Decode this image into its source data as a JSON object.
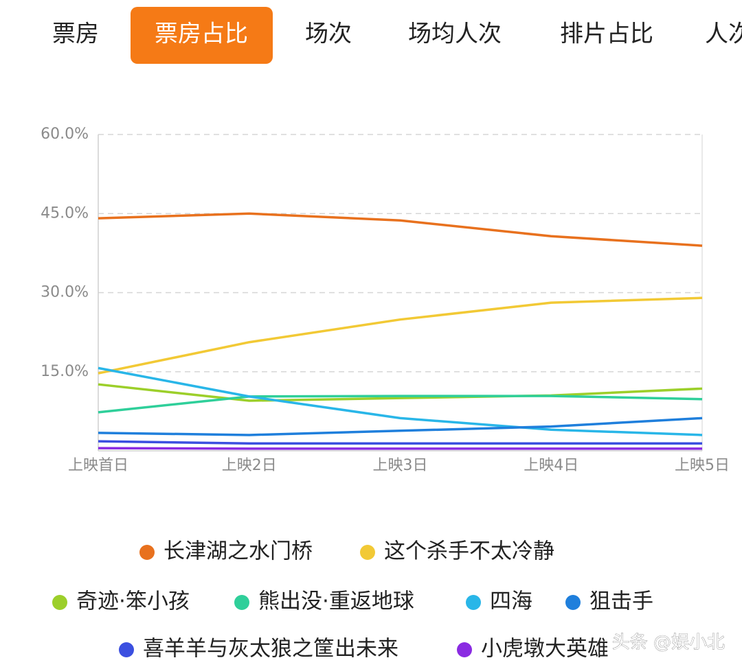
{
  "tabs": [
    "票房",
    "票房占比",
    "场次",
    "场均人次",
    "排片占比",
    "人次"
  ],
  "active_tab": 1,
  "watermark": "头条 @娱小北",
  "chart_data": {
    "type": "line",
    "categories": [
      "上映首日",
      "上映2日",
      "上映3日",
      "上映4日",
      "上映5日"
    ],
    "ylim": [
      0,
      60
    ],
    "yticks": [
      {
        "value": 15,
        "label": "15.0%"
      },
      {
        "value": 30,
        "label": "30.0%"
      },
      {
        "value": 45,
        "label": "45.0%"
      },
      {
        "value": 60,
        "label": "60.0%"
      }
    ],
    "grid": true,
    "legend": "bottom",
    "series": [
      {
        "name": "长津湖之水门桥",
        "color": "#e8711e",
        "values": [
          44.1,
          45.0,
          43.7,
          40.7,
          38.9
        ]
      },
      {
        "name": "这个杀手不太冷静",
        "color": "#f2c935",
        "values": [
          14.7,
          20.6,
          24.9,
          28.1,
          29.0
        ]
      },
      {
        "name": "奇迹·笨小孩",
        "color": "#9ccf2a",
        "values": [
          12.6,
          9.5,
          10.0,
          10.5,
          11.8
        ]
      },
      {
        "name": "熊出没·重返地球",
        "color": "#2fcf9a",
        "values": [
          7.3,
          10.3,
          10.4,
          10.4,
          9.8
        ]
      },
      {
        "name": "四海",
        "color": "#29b6e8",
        "values": [
          15.7,
          10.3,
          6.2,
          4.0,
          3.0
        ]
      },
      {
        "name": "狙击手",
        "color": "#1f7fdc",
        "values": [
          3.4,
          3.0,
          3.8,
          4.6,
          6.2
        ]
      },
      {
        "name": "喜羊羊与灰太狼之筐出未来",
        "color": "#3b4fe0",
        "values": [
          1.8,
          1.4,
          1.4,
          1.4,
          1.4
        ]
      },
      {
        "name": "小虎墩大英雄",
        "color": "#8a2be2",
        "values": [
          0.5,
          0.4,
          0.4,
          0.4,
          0.4
        ]
      }
    ]
  }
}
